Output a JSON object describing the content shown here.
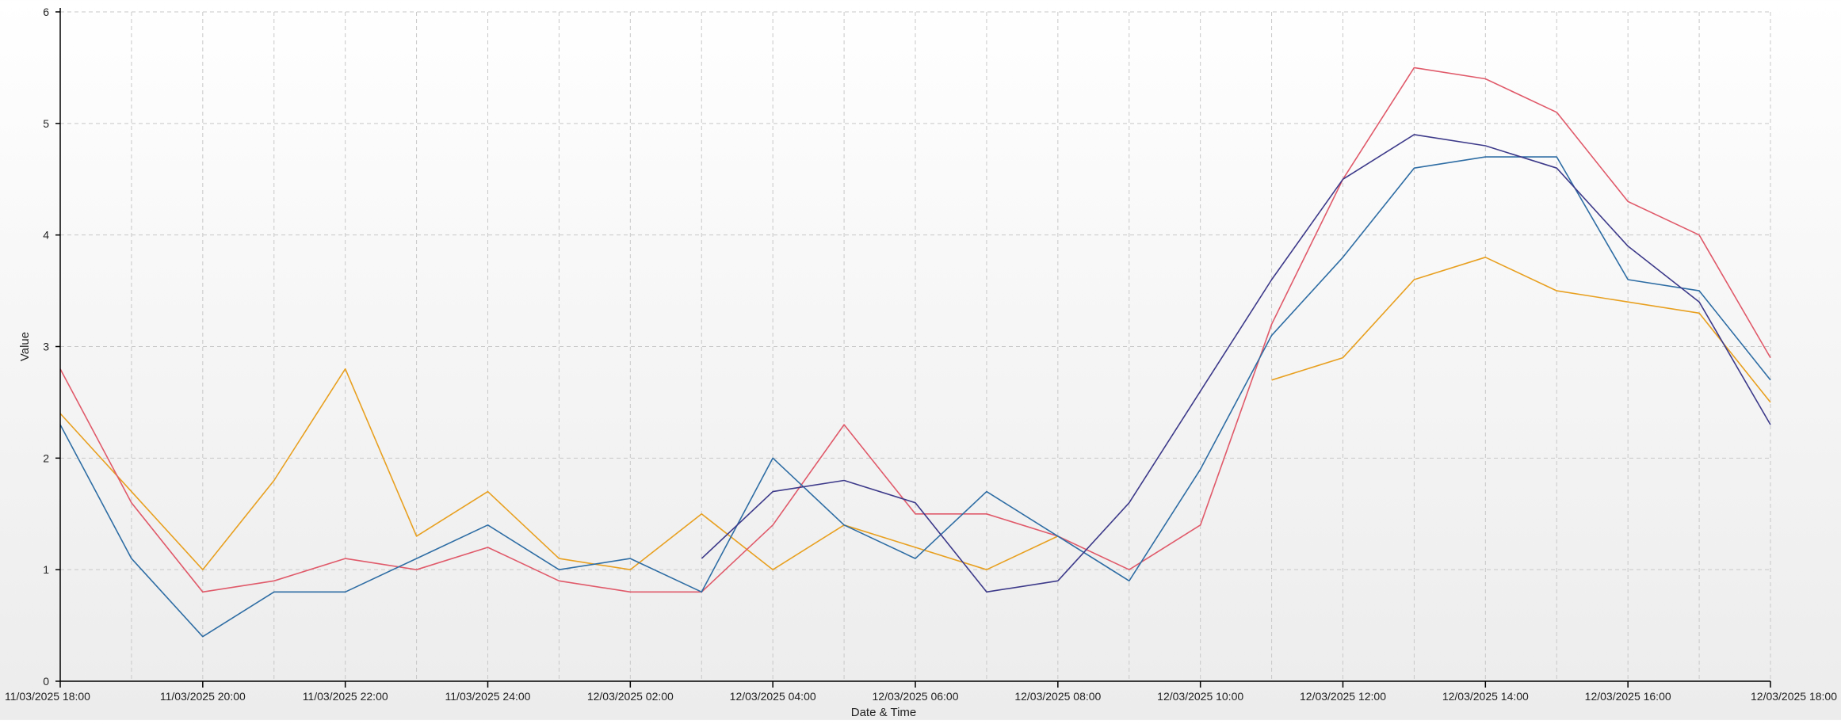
{
  "chart_data": {
    "type": "line",
    "xlabel": "Date & Time",
    "ylabel": "Value",
    "ylim": [
      0,
      6
    ],
    "yticks": [
      "0",
      "1",
      "2",
      "3",
      "4",
      "5",
      "6"
    ],
    "xlim": [
      "11/03/2025 18:00",
      "12/03/2025 18:00"
    ],
    "xtick_labels": [
      "11/03/2025 18:00",
      "11/03/2025 20:00",
      "11/03/2025 22:00",
      "11/03/2025 24:00",
      "12/03/2025 02:00",
      "12/03/2025 04:00",
      "12/03/2025 06:00",
      "12/03/2025 08:00",
      "12/03/2025 10:00",
      "12/03/2025 12:00",
      "12/03/2025 14:00",
      "12/03/2025 16:00",
      "12/03/2025 18:00"
    ],
    "x": [
      "11/03/2025 18:00",
      "11/03/2025 19:00",
      "11/03/2025 20:00",
      "11/03/2025 21:00",
      "11/03/2025 22:00",
      "11/03/2025 23:00",
      "11/03/2025 24:00",
      "12/03/2025 01:00",
      "12/03/2025 02:00",
      "12/03/2025 03:00",
      "12/03/2025 04:00",
      "12/03/2025 05:00",
      "12/03/2025 06:00",
      "12/03/2025 07:00",
      "12/03/2025 08:00",
      "12/03/2025 09:00",
      "12/03/2025 10:00",
      "12/03/2025 11:00",
      "12/03/2025 12:00",
      "12/03/2025 13:00",
      "12/03/2025 14:00",
      "12/03/2025 15:00",
      "12/03/2025 16:00",
      "12/03/2025 17:00",
      "12/03/2025 18:00"
    ],
    "grid": true,
    "legend": "none",
    "series": [
      {
        "color": "#e8a020",
        "values": [
          2.4,
          1.7,
          1.0,
          1.8,
          2.8,
          1.3,
          1.7,
          1.1,
          1.0,
          1.5,
          1.0,
          1.4,
          1.2,
          1.0,
          1.3,
          null,
          null,
          2.7,
          2.9,
          3.6,
          3.8,
          3.5,
          3.4,
          3.3,
          2.5
        ]
      },
      {
        "color": "#e05a6a",
        "values": [
          2.8,
          1.6,
          0.8,
          0.9,
          1.1,
          1.0,
          1.2,
          0.9,
          0.8,
          0.8,
          1.4,
          2.3,
          1.5,
          1.5,
          1.3,
          1.0,
          1.4,
          3.2,
          4.5,
          5.5,
          5.4,
          5.1,
          4.3,
          4.0,
          2.9
        ]
      },
      {
        "color": "#2e6da4",
        "values": [
          2.3,
          1.1,
          0.4,
          0.8,
          0.8,
          1.1,
          1.4,
          1.0,
          1.1,
          0.8,
          2.0,
          1.4,
          1.1,
          1.7,
          1.3,
          0.9,
          1.9,
          3.1,
          3.8,
          4.6,
          4.7,
          4.7,
          3.6,
          3.5,
          2.7
        ]
      },
      {
        "color": "#3d3a8a",
        "values": [
          null,
          null,
          null,
          null,
          null,
          null,
          null,
          null,
          null,
          1.1,
          1.7,
          1.8,
          1.6,
          0.8,
          0.9,
          1.6,
          2.6,
          3.6,
          4.5,
          4.9,
          4.8,
          4.6,
          3.9,
          3.4,
          2.3
        ]
      }
    ]
  }
}
